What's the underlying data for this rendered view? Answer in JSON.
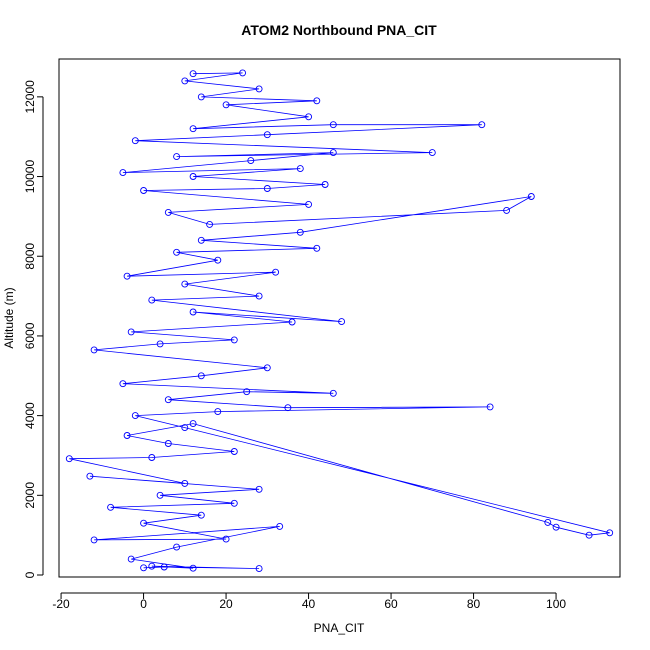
{
  "chart_data": {
    "type": "scatter",
    "title": "ATOM2 Northbound PNA_CIT",
    "xlabel": "PNA_CIT",
    "ylabel": "Altitude (m)",
    "xlim": [
      -20.5,
      115.5
    ],
    "ylim": [
      -50,
      12950
    ],
    "x_ticks": [
      -20,
      0,
      20,
      40,
      60,
      80,
      100
    ],
    "y_ticks": [
      0,
      2000,
      4000,
      6000,
      8000,
      10000,
      12000
    ],
    "grid": false,
    "legend": "none",
    "point_style": "open-circle-connected",
    "color": "#0000ff",
    "series": [
      {
        "values": [
          [
            0,
            180
          ],
          [
            5,
            200
          ],
          [
            28,
            160
          ],
          [
            2,
            220
          ],
          [
            12,
            170
          ],
          [
            -3,
            400
          ],
          [
            8,
            700
          ],
          [
            33,
            1220
          ],
          [
            -12,
            880
          ],
          [
            20,
            900
          ],
          [
            0,
            1300
          ],
          [
            14,
            1500
          ],
          [
            -8,
            1700
          ],
          [
            22,
            1800
          ],
          [
            4,
            2000
          ],
          [
            28,
            2150
          ],
          [
            -13,
            2480
          ],
          [
            10,
            2300
          ],
          [
            -18,
            2920
          ],
          [
            2,
            2950
          ],
          [
            22,
            3100
          ],
          [
            6,
            3300
          ],
          [
            -4,
            3500
          ],
          [
            12,
            3800
          ],
          [
            98,
            1320
          ],
          [
            100,
            1200
          ],
          [
            108,
            1000
          ],
          [
            113,
            1060
          ],
          [
            10,
            3700
          ],
          [
            -2,
            4000
          ],
          [
            18,
            4100
          ],
          [
            84,
            4220
          ],
          [
            35,
            4200
          ],
          [
            6,
            4400
          ],
          [
            25,
            4600
          ],
          [
            46,
            4560
          ],
          [
            -5,
            4800
          ],
          [
            14,
            5000
          ],
          [
            30,
            5200
          ],
          [
            -12,
            5650
          ],
          [
            4,
            5800
          ],
          [
            22,
            5900
          ],
          [
            -3,
            6100
          ],
          [
            36,
            6350
          ],
          [
            12,
            6600
          ],
          [
            48,
            6360
          ],
          [
            2,
            6900
          ],
          [
            28,
            7000
          ],
          [
            10,
            7300
          ],
          [
            32,
            7600
          ],
          [
            -4,
            7500
          ],
          [
            18,
            7900
          ],
          [
            8,
            8100
          ],
          [
            42,
            8200
          ],
          [
            14,
            8400
          ],
          [
            38,
            8600
          ],
          [
            94,
            9500
          ],
          [
            88,
            9150
          ],
          [
            16,
            8800
          ],
          [
            6,
            9100
          ],
          [
            40,
            9300
          ],
          [
            0,
            9650
          ],
          [
            30,
            9700
          ],
          [
            44,
            9800
          ],
          [
            12,
            10000
          ],
          [
            38,
            10200
          ],
          [
            -5,
            10100
          ],
          [
            26,
            10400
          ],
          [
            46,
            10600
          ],
          [
            8,
            10500
          ],
          [
            70,
            10600
          ],
          [
            -2,
            10900
          ],
          [
            30,
            11050
          ],
          [
            82,
            11300
          ],
          [
            46,
            11300
          ],
          [
            12,
            11200
          ],
          [
            40,
            11500
          ],
          [
            20,
            11800
          ],
          [
            42,
            11900
          ],
          [
            14,
            12000
          ],
          [
            28,
            12200
          ],
          [
            10,
            12400
          ],
          [
            24,
            12600
          ],
          [
            12,
            12580
          ]
        ]
      }
    ]
  }
}
